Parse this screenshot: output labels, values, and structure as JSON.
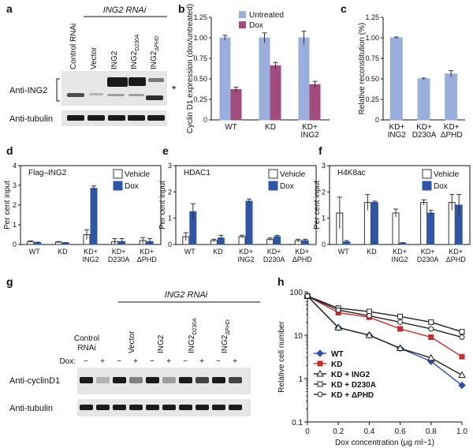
{
  "colors": {
    "untreated": "#9aaedb",
    "dox": "#a34a7e",
    "vehicle": "#ffffff",
    "dox_dark": "#2f56a6",
    "wt": "#2f4fa0",
    "kd": "#c03030",
    "axis": "#111111"
  },
  "panel_labels": {
    "a": "a",
    "b": "b",
    "c": "c",
    "d": "d",
    "e": "e",
    "f": "f",
    "g": "g",
    "h": "h"
  },
  "blot_a": {
    "title": "ING2 RNAi",
    "lanes": [
      "Control RNAi",
      "Vector",
      "ING2",
      "ING2D230A",
      "ING2ΔPHD"
    ],
    "lane_main": [
      "Control RNAi",
      "Vector",
      "ING2",
      "ING2",
      "ING2"
    ],
    "lane_sub": [
      "",
      "",
      "",
      "D230A",
      "ΔPHD"
    ],
    "row1": "Anti-ING2",
    "row2": "Anti-tubulin",
    "asterisk": "*"
  },
  "blot_g": {
    "title": "ING2 RNAi",
    "lane_main": [
      "Control RNAi",
      "Vector",
      "ING2",
      "ING2",
      "ING2"
    ],
    "lane_sub": [
      "",
      "",
      "",
      "D230A",
      "ΔPHD"
    ],
    "dox_label": "Dox:",
    "dox_signs": [
      "−",
      "+",
      "−",
      "+",
      "−",
      "+",
      "−",
      "+",
      "−",
      "+"
    ],
    "row1": "Anti-cyclinD1",
    "row2": "Anti-tubulin"
  },
  "chart_data": [
    {
      "id": "b",
      "type": "bar",
      "title": "",
      "ylabel": "Cyclin D1 expression (dox/untreated)",
      "categories": [
        "WT",
        "KD",
        "KD+ ING2"
      ],
      "series": [
        {
          "name": "Untreated",
          "values": [
            1.0,
            1.0,
            1.0
          ],
          "errors": [
            0.03,
            0.06,
            0.08
          ]
        },
        {
          "name": "Dox",
          "values": [
            0.37,
            0.66,
            0.43
          ],
          "errors": [
            0.03,
            0.04,
            0.04
          ]
        }
      ],
      "ylim": [
        0,
        1.25
      ],
      "yticks": [
        "0",
        "0.25",
        "0.50",
        "0.75",
        "1.00",
        "1.25"
      ],
      "legend": "top-right"
    },
    {
      "id": "c",
      "type": "bar",
      "ylabel": "Relative reconstitution (%)",
      "categories": [
        "KD+ ING2",
        "KD+ D230A",
        "KD+ ΔPHD"
      ],
      "series": [
        {
          "name": "Reconstitution",
          "values": [
            1.0,
            0.5,
            0.56
          ],
          "errors": [
            0.01,
            0.01,
            0.04
          ]
        }
      ],
      "ylim": [
        0,
        1.25
      ],
      "yticks": [
        "0",
        "0.25",
        "0.50",
        "0.75",
        "1.00",
        "1.25"
      ]
    },
    {
      "id": "d",
      "type": "bar",
      "inset_title": "Flag–ING2",
      "ylabel": "Per cent input",
      "categories": [
        "WT",
        "KD",
        "KD+ ING2",
        "KD+ D230A",
        "KD+ ΔPHD"
      ],
      "series": [
        {
          "name": "Vehicle",
          "values": [
            0.15,
            0.12,
            0.5,
            0.15,
            0.2
          ],
          "errors": [
            0.03,
            0.03,
            0.25,
            0.15,
            0.15
          ]
        },
        {
          "name": "Dox",
          "values": [
            0.1,
            0.08,
            2.85,
            0.15,
            0.15
          ],
          "errors": [
            0.02,
            0.02,
            0.12,
            0.15,
            0.15
          ]
        }
      ],
      "ylim": [
        0,
        4
      ],
      "yticks": [
        "0",
        "1",
        "2",
        "3",
        "4"
      ],
      "legend": "top-right"
    },
    {
      "id": "e",
      "type": "bar",
      "inset_title": "HDAC1",
      "ylabel": "Per cent input",
      "categories": [
        "WT",
        "KD",
        "KD+ ING2",
        "KD+ D230A",
        "KD+ ΔPHD"
      ],
      "series": [
        {
          "name": "Vehicle",
          "values": [
            0.3,
            0.15,
            0.3,
            0.2,
            0.15
          ],
          "errors": [
            0.15,
            0.05,
            0.05,
            0.05,
            0.05
          ]
        },
        {
          "name": "Dox",
          "values": [
            1.25,
            0.25,
            1.65,
            0.3,
            0.15
          ],
          "errors": [
            0.3,
            0.1,
            0.08,
            0.05,
            0.05
          ]
        }
      ],
      "ylim": [
        0,
        3
      ],
      "yticks": [
        "0",
        "1",
        "2",
        "3"
      ],
      "legend": "top-right"
    },
    {
      "id": "f",
      "type": "bar",
      "inset_title": "H4K8ac",
      "ylabel": "Per cent input",
      "categories": [
        "WT",
        "KD",
        "KD+ ING2",
        "KD+ D230A",
        "KD+ ΔPHD"
      ],
      "series": [
        {
          "name": "Vehicle",
          "values": [
            1.2,
            1.6,
            1.2,
            1.6,
            1.6
          ],
          "errors": [
            0.6,
            0.3,
            0.15,
            0.1,
            0.3
          ]
        },
        {
          "name": "Dox",
          "values": [
            0.1,
            1.6,
            0.05,
            1.2,
            1.5
          ],
          "errors": [
            0.05,
            0.05,
            0.02,
            0.1,
            0.4
          ]
        }
      ],
      "ylim": [
        0,
        3
      ],
      "yticks": [
        "0",
        "1",
        "2",
        "3"
      ],
      "legend": "top-right"
    },
    {
      "id": "h",
      "type": "line",
      "xlabel": "Dox concentration (μg ml−1)",
      "ylabel": "Relative cell number",
      "yscale": "log",
      "x": [
        0,
        0.2,
        0.4,
        0.6,
        0.8,
        1.0
      ],
      "xticks": [
        "0",
        "0.2",
        "0.4",
        "0.6",
        "0.8",
        "1.0"
      ],
      "ytick_values": [
        0.1,
        1,
        10,
        100
      ],
      "yticks": [
        "0.1",
        "1",
        "10",
        "100"
      ],
      "ylim": [
        0.1,
        100
      ],
      "xlim": [
        0,
        1.0
      ],
      "series": [
        {
          "name": "WT",
          "marker": "diamond-filled",
          "values": [
            80,
            15,
            10,
            5,
            2.5,
            0.7
          ]
        },
        {
          "name": "KD",
          "marker": "square-filled",
          "values": [
            80,
            33,
            26,
            14,
            9,
            3.2
          ]
        },
        {
          "name": "KD + ING2",
          "marker": "triangle-open",
          "values": [
            80,
            15,
            10,
            5,
            3,
            1.2
          ]
        },
        {
          "name": "KD + D230A",
          "marker": "square-open",
          "values": [
            80,
            42,
            35,
            27,
            20,
            12
          ]
        },
        {
          "name": "KD + ΔPHD",
          "marker": "circle-open",
          "values": [
            80,
            38,
            28,
            20,
            14,
            9
          ]
        }
      ],
      "legend": "bottom-left"
    }
  ]
}
